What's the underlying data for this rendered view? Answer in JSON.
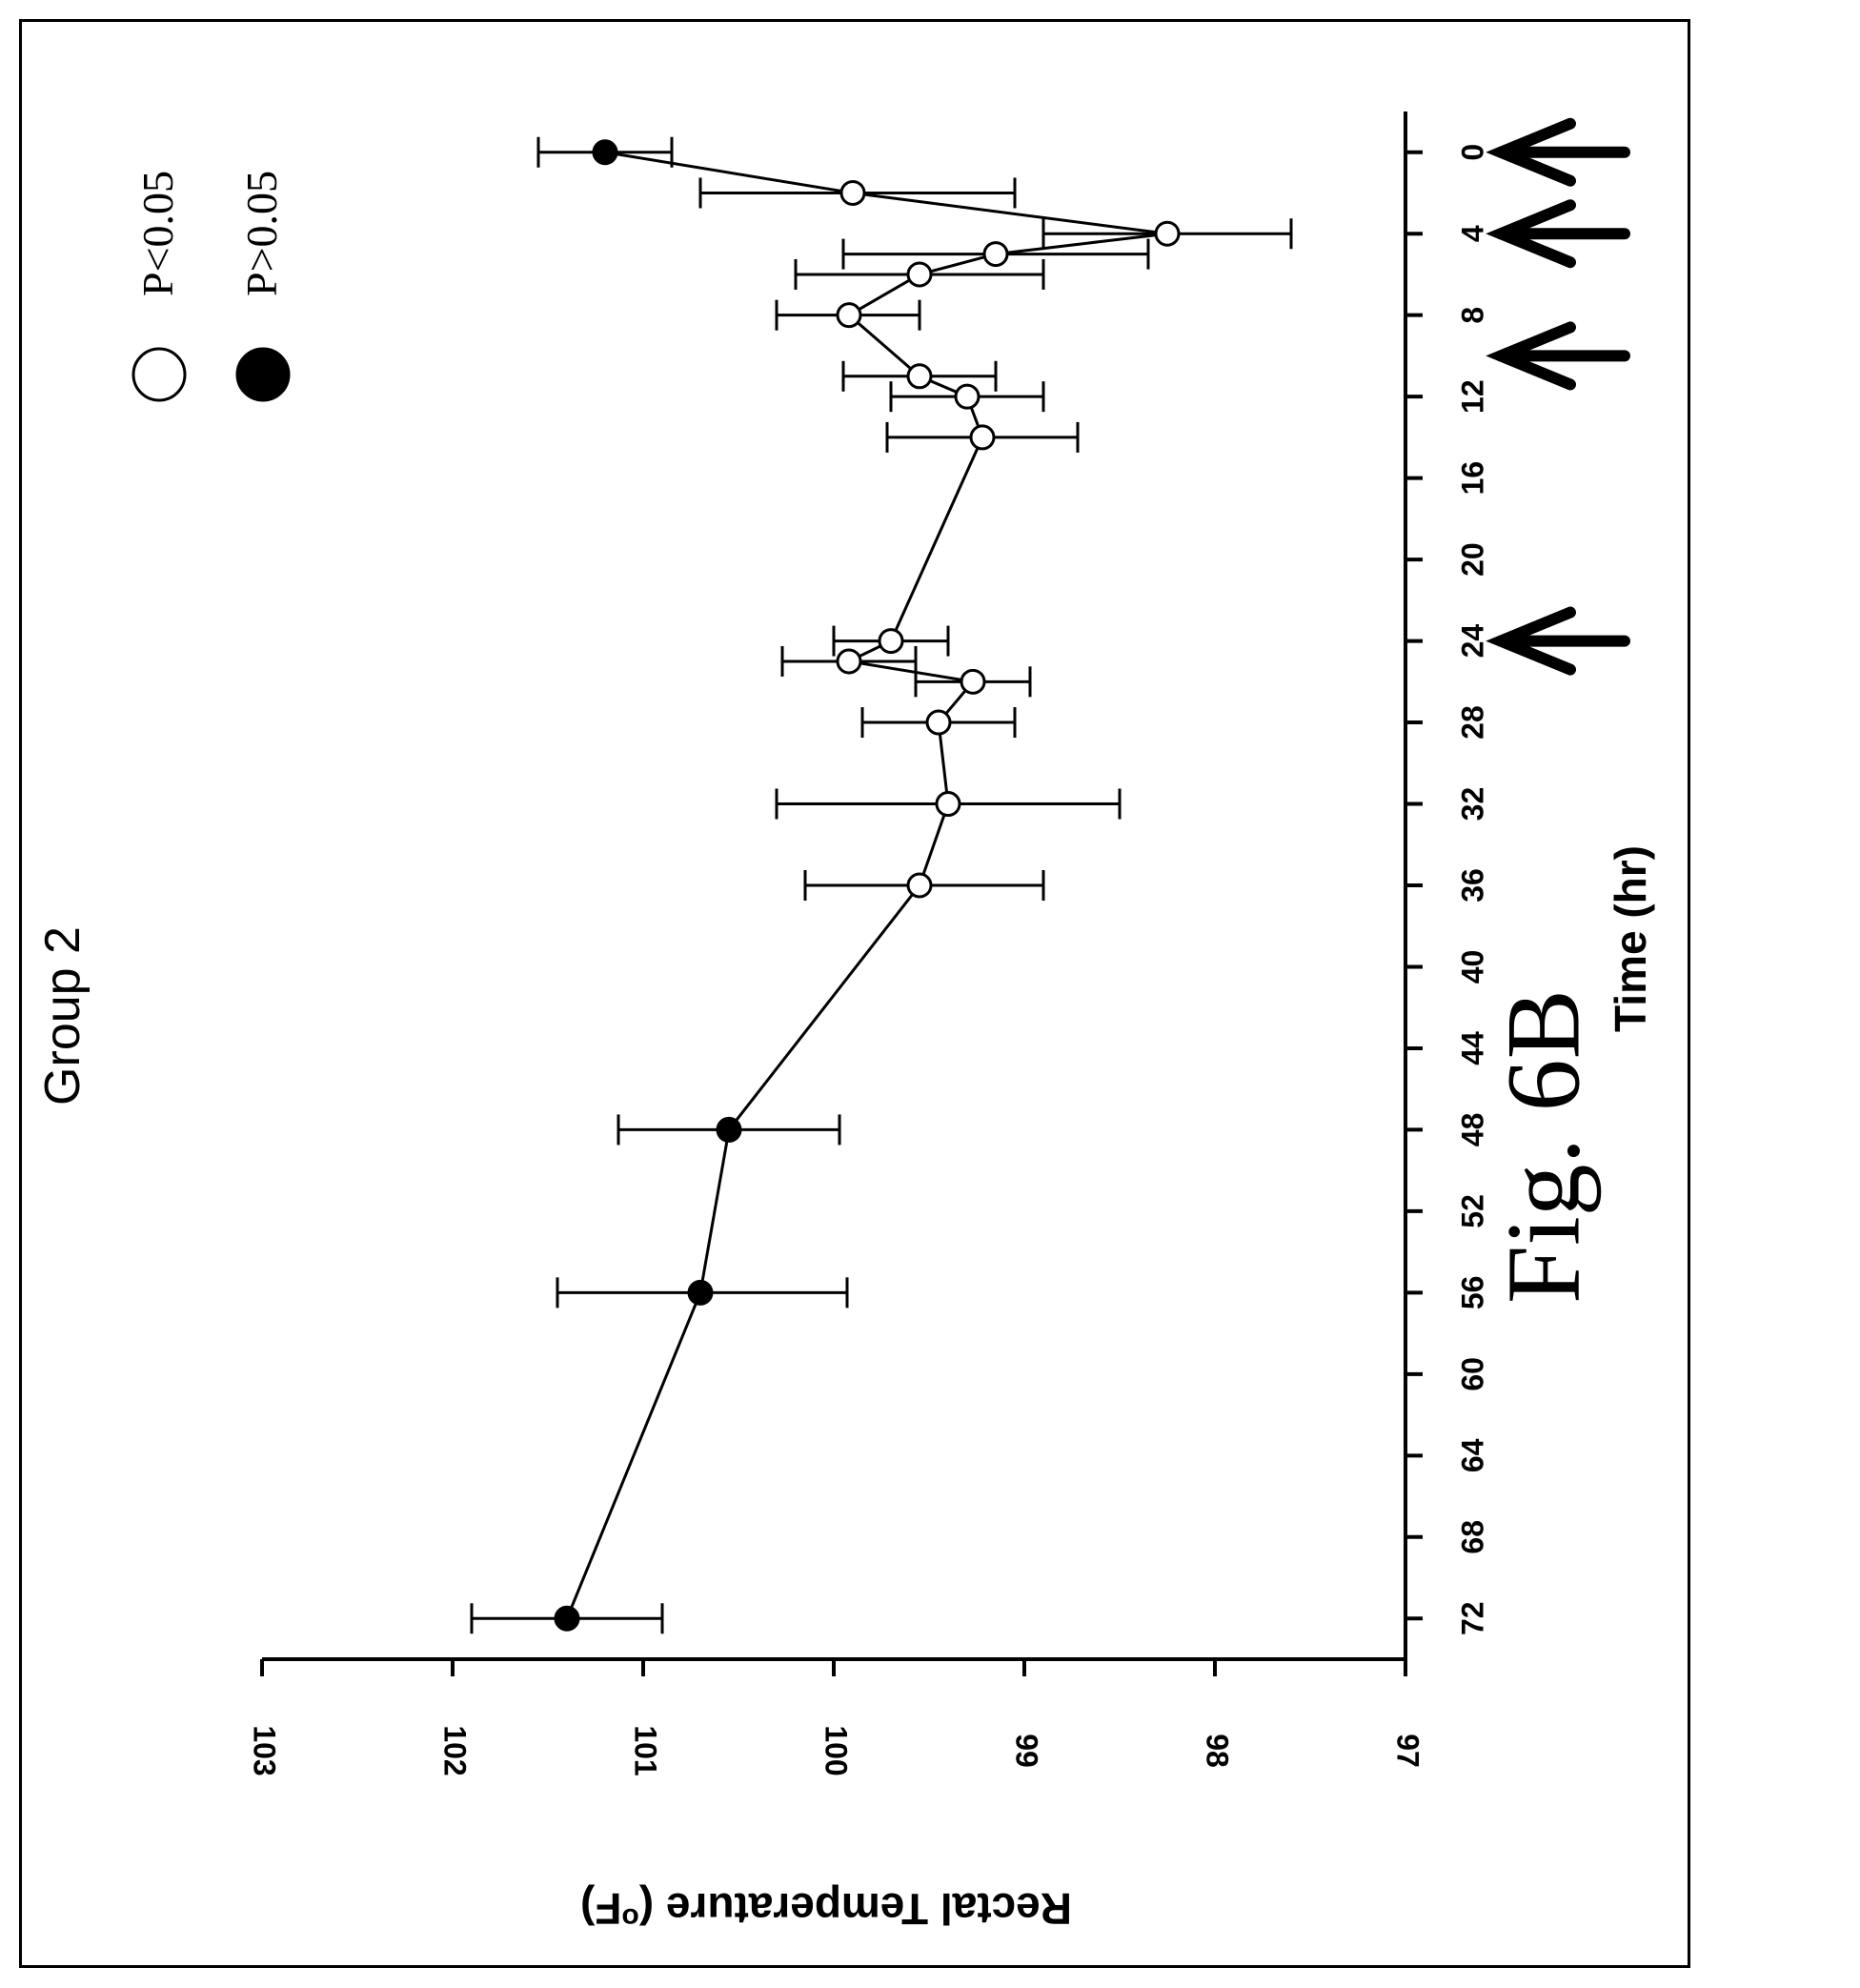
{
  "figure": {
    "caption": "Fig. 6B"
  },
  "chart_data": {
    "type": "line",
    "title": "Group 2",
    "xlabel": "Time (hr)",
    "ylabel": "Rectal Temperature (°F)",
    "ylabel_parts": {
      "pre": "Rectal Temperature (",
      "sup": "o",
      "post": "F)"
    },
    "x_ticks": [
      "0",
      "4",
      "8",
      "12",
      "16",
      "20",
      "24",
      "28",
      "32",
      "36",
      "40",
      "44",
      "48",
      "52",
      "56",
      "60",
      "64",
      "68",
      "72"
    ],
    "y_ticks": [
      "97",
      "98",
      "99",
      "100",
      "101",
      "102",
      "103"
    ],
    "xlim": [
      -2,
      74
    ],
    "ylim": [
      97,
      103
    ],
    "orientation": "rotated-90-ccw",
    "grid": false,
    "legend_position": "top-right",
    "legend": [
      {
        "label": "P<0.05",
        "marker": "open-circle"
      },
      {
        "label": "P>0.05",
        "marker": "filled-circle"
      }
    ],
    "dose_arrows_x": [
      0,
      4,
      10,
      24
    ],
    "series": [
      {
        "points": [
          {
            "x": 0,
            "y": 101.2,
            "err_low": 100.85,
            "err_high": 101.55,
            "significant": false
          },
          {
            "x": 2,
            "y": 99.9,
            "err_low": 99.05,
            "err_high": 100.7,
            "significant": true
          },
          {
            "x": 4,
            "y": 98.25,
            "err_low": 97.6,
            "err_high": 98.9,
            "significant": true
          },
          {
            "x": 5,
            "y": 99.15,
            "err_low": 98.35,
            "err_high": 99.95,
            "significant": true
          },
          {
            "x": 6,
            "y": 99.55,
            "err_low": 98.9,
            "err_high": 100.2,
            "significant": true
          },
          {
            "x": 8,
            "y": 99.92,
            "err_low": 99.55,
            "err_high": 100.3,
            "significant": true
          },
          {
            "x": 11,
            "y": 99.55,
            "err_low": 99.15,
            "err_high": 99.95,
            "significant": true
          },
          {
            "x": 12,
            "y": 99.3,
            "err_low": 98.9,
            "err_high": 99.7,
            "significant": true
          },
          {
            "x": 14,
            "y": 99.22,
            "err_low": 98.72,
            "err_high": 99.72,
            "significant": true
          },
          {
            "x": 24,
            "y": 99.7,
            "err_low": 99.4,
            "err_high": 100.0,
            "significant": true
          },
          {
            "x": 25,
            "y": 99.92,
            "err_low": 99.57,
            "err_high": 100.27,
            "significant": true
          },
          {
            "x": 26,
            "y": 99.27,
            "err_low": 98.97,
            "err_high": 99.57,
            "significant": true
          },
          {
            "x": 28,
            "y": 99.45,
            "err_low": 99.05,
            "err_high": 99.85,
            "significant": true
          },
          {
            "x": 32,
            "y": 99.4,
            "err_low": 98.5,
            "err_high": 100.3,
            "significant": true
          },
          {
            "x": 36,
            "y": 99.55,
            "err_low": 98.9,
            "err_high": 100.15,
            "significant": true
          },
          {
            "x": 48,
            "y": 100.55,
            "err_low": 99.97,
            "err_high": 101.13,
            "significant": false
          },
          {
            "x": 56,
            "y": 100.7,
            "err_low": 99.93,
            "err_high": 101.45,
            "significant": false
          },
          {
            "x": 72,
            "y": 101.4,
            "err_low": 100.9,
            "err_high": 101.9,
            "significant": false
          }
        ]
      }
    ]
  }
}
